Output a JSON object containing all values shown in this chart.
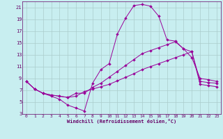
{
  "title": "Windchill (Refroidissement éolien,°C)",
  "bg_color": "#c8eef0",
  "line_color": "#990099",
  "grid_color": "#aacccc",
  "axis_color": "#660066",
  "xlim": [
    -0.5,
    23.5
  ],
  "ylim": [
    3,
    22
  ],
  "xticks": [
    0,
    1,
    2,
    3,
    4,
    5,
    6,
    7,
    8,
    9,
    10,
    11,
    12,
    13,
    14,
    15,
    16,
    17,
    18,
    19,
    20,
    21,
    22,
    23
  ],
  "yticks": [
    3,
    5,
    7,
    9,
    11,
    13,
    15,
    17,
    19,
    21
  ],
  "line1_x": [
    0,
    1,
    2,
    3,
    4,
    5,
    6,
    7,
    8,
    9,
    10,
    11,
    12,
    13,
    14,
    15,
    16,
    17,
    18,
    19,
    20,
    21,
    22,
    23
  ],
  "line1_y": [
    8.5,
    7.2,
    6.5,
    6.0,
    5.5,
    4.5,
    4.0,
    3.5,
    8.2,
    10.5,
    11.5,
    16.5,
    19.2,
    21.3,
    21.5,
    21.2,
    19.5,
    15.5,
    15.3,
    14.0,
    12.5,
    9.0,
    8.8,
    8.5
  ],
  "line2_x": [
    0,
    1,
    2,
    3,
    4,
    5,
    6,
    7,
    8,
    9,
    10,
    11,
    12,
    13,
    14,
    15,
    16,
    17,
    18,
    19,
    20,
    21,
    22,
    23
  ],
  "line2_y": [
    8.5,
    7.2,
    6.5,
    6.2,
    6.0,
    5.8,
    6.5,
    6.5,
    7.5,
    8.2,
    9.2,
    10.2,
    11.2,
    12.2,
    13.2,
    13.7,
    14.2,
    14.7,
    15.2,
    14.0,
    13.5,
    8.5,
    8.3,
    8.2
  ],
  "line3_x": [
    0,
    1,
    2,
    3,
    4,
    5,
    6,
    7,
    8,
    9,
    10,
    11,
    12,
    13,
    14,
    15,
    16,
    17,
    18,
    19,
    20,
    21,
    22,
    23
  ],
  "line3_y": [
    8.5,
    7.2,
    6.5,
    6.2,
    6.0,
    5.8,
    6.0,
    6.8,
    7.2,
    7.6,
    8.0,
    8.6,
    9.2,
    9.8,
    10.5,
    11.0,
    11.5,
    12.0,
    12.5,
    13.0,
    13.5,
    8.0,
    7.8,
    7.6
  ]
}
